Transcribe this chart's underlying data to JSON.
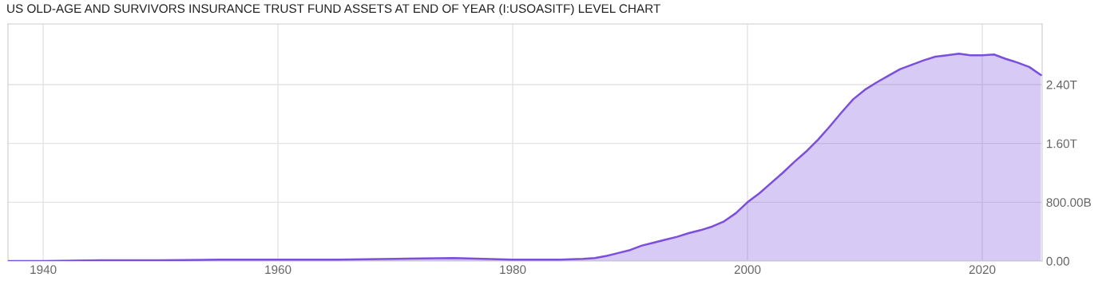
{
  "chart_data": {
    "type": "area",
    "title": "US OLD-AGE AND SURVIVORS INSURANCE TRUST FUND ASSETS AT END OF YEAR (I:USOASITF) LEVEL CHART",
    "x": [
      1937,
      1940,
      1945,
      1950,
      1955,
      1960,
      1965,
      1970,
      1975,
      1980,
      1984,
      1986,
      1987,
      1988,
      1989,
      1990,
      1991,
      1992,
      1993,
      1994,
      1995,
      1996,
      1997,
      1998,
      1999,
      2000,
      2001,
      2002,
      2003,
      2004,
      2005,
      2006,
      2007,
      2008,
      2009,
      2010,
      2011,
      2012,
      2013,
      2014,
      2015,
      2016,
      2017,
      2018,
      2019,
      2020,
      2021,
      2022,
      2023,
      2024,
      2025
    ],
    "series": [
      {
        "color": "#7b4fdb",
        "values": [
          0,
          0,
          10000000000.0,
          10000000000.0,
          20000000000.0,
          20000000000.0,
          20000000000.0,
          30000000000.0,
          40000000000.0,
          20000000000.0,
          20000000000.0,
          30000000000.0,
          40000000000.0,
          70000000000.0,
          110000000000.0,
          150000000000.0,
          210000000000.0,
          250000000000.0,
          290000000000.0,
          330000000000.0,
          380000000000.0,
          420000000000.0,
          470000000000.0,
          540000000000.0,
          650000000000.0,
          800000000000.0,
          920000000000.0,
          1060000000000.0,
          1200000000000.0,
          1350000000000.0,
          1490000000000.0,
          1650000000000.0,
          1830000000000.0,
          2020000000000.0,
          2200000000000.0,
          2330000000000.0,
          2430000000000.0,
          2520000000000.0,
          2610000000000.0,
          2670000000000.0,
          2730000000000.0,
          2780000000000.0,
          2800000000000.0,
          2820000000000.0,
          2800000000000.0,
          2800000000000.0,
          2810000000000.0,
          2750000000000.0,
          2700000000000.0,
          2640000000000.0,
          2530000000000.0
        ]
      }
    ],
    "xlim": [
      1937,
      2025.1
    ],
    "ylim": [
      0,
      3225000000000.0
    ],
    "xticks": [
      1940,
      1960,
      1980,
      2000,
      2020
    ],
    "yticks": [
      {
        "value": 0,
        "label": "0.00"
      },
      {
        "value": 800000000000.0,
        "label": "800.00B"
      },
      {
        "value": 1600000000000.0,
        "label": "1.60T"
      },
      {
        "value": 2400000000000.0,
        "label": "2.40T"
      }
    ],
    "grid": true
  }
}
